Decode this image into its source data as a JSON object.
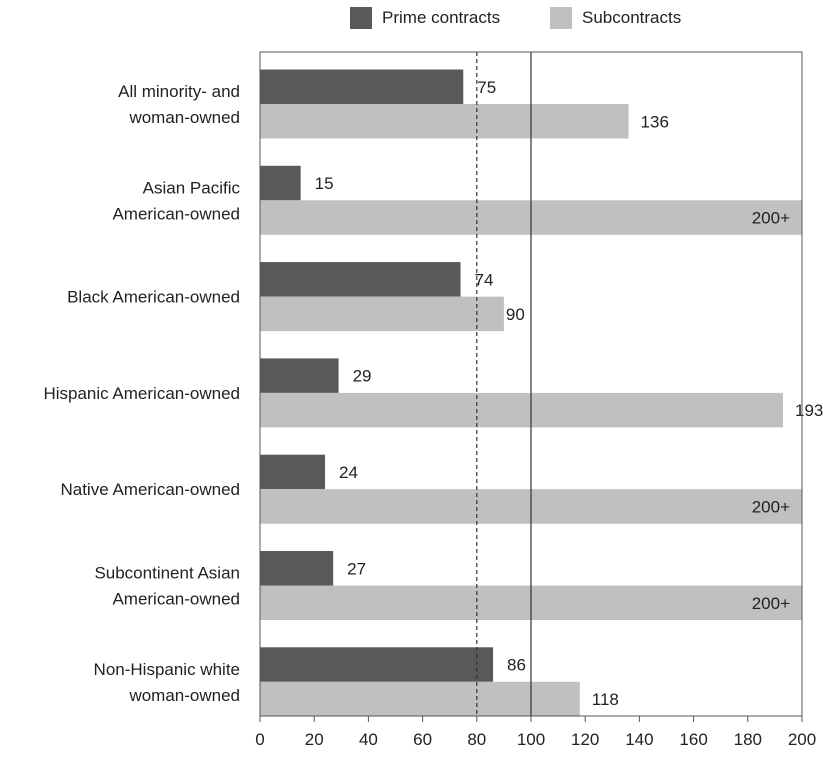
{
  "legend": {
    "prime_label": "Prime contracts",
    "sub_label": "Subcontracts"
  },
  "colors": {
    "prime": "#595959",
    "sub": "#c0c0c0",
    "text": "#222222"
  },
  "chart_data": {
    "type": "bar",
    "orientation": "horizontal",
    "title": "",
    "xlabel": "",
    "ylabel": "",
    "xlim": [
      0,
      200
    ],
    "xticks": [
      0,
      20,
      40,
      60,
      80,
      100,
      120,
      140,
      160,
      180,
      200
    ],
    "legend_position": "top",
    "reference_lines": [
      {
        "x": 80,
        "style": "dashed"
      },
      {
        "x": 100,
        "style": "solid"
      }
    ],
    "categories": [
      [
        "All minority- and",
        "woman-owned"
      ],
      [
        "Asian Pacific",
        "American-owned"
      ],
      [
        "Black American-owned"
      ],
      [
        "Hispanic American-owned"
      ],
      [
        "Native American-owned"
      ],
      [
        "Subcontinent Asian",
        "American-owned"
      ],
      [
        "Non-Hispanic white",
        "woman-owned"
      ]
    ],
    "series": [
      {
        "name": "Prime contracts",
        "values": [
          75,
          15,
          74,
          29,
          24,
          27,
          86
        ],
        "labels": [
          "75",
          "15",
          "74",
          "29",
          "24",
          "27",
          "86"
        ]
      },
      {
        "name": "Subcontracts",
        "values": [
          136,
          200,
          90,
          193,
          200,
          200,
          118
        ],
        "labels": [
          "136",
          "200+",
          "90",
          "193",
          "200+",
          "200+",
          "118"
        ]
      }
    ]
  }
}
